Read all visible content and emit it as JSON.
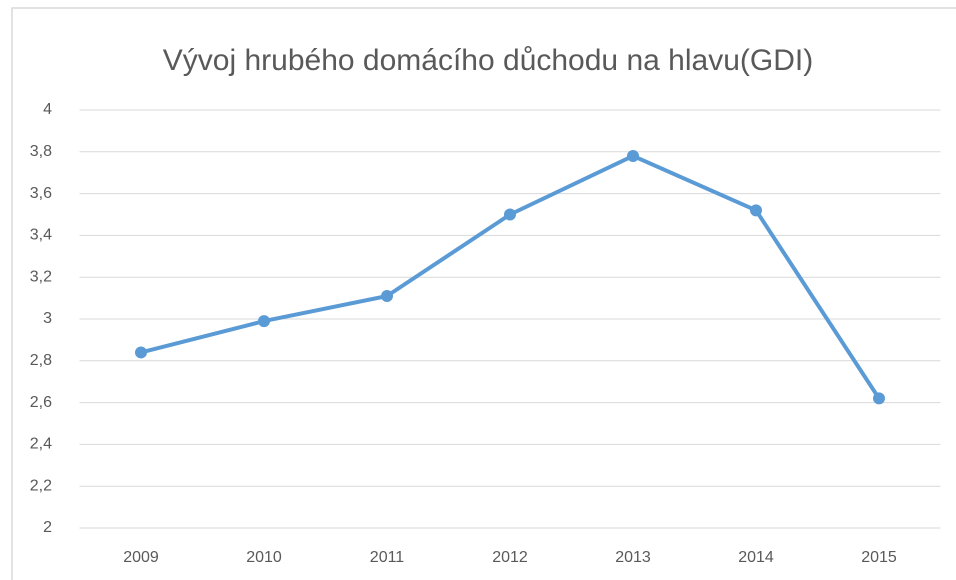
{
  "chart_data": {
    "type": "line",
    "title": "Vývoj hrubého domácího důchodu na hlavu(GDI)",
    "categories": [
      "2009",
      "2010",
      "2011",
      "2012",
      "2013",
      "2014",
      "2015"
    ],
    "series": [
      {
        "name": "GDI",
        "color": "#5b9bd5",
        "values": [
          2.84,
          2.99,
          3.11,
          3.5,
          3.78,
          3.52,
          2.62
        ]
      }
    ],
    "ylim": [
      2,
      4
    ],
    "yticks": [
      2,
      {
        "value": 2.2,
        "label": "2,2"
      },
      {
        "value": 2.4,
        "label": "2,4"
      },
      {
        "value": 2.6,
        "label": "2,6"
      },
      {
        "value": 2.8,
        "label": "2,8"
      },
      3,
      {
        "value": 3.2,
        "label": "3,2"
      },
      {
        "value": 3.4,
        "label": "3,4"
      },
      {
        "value": 3.6,
        "label": "3,6"
      },
      {
        "value": 3.8,
        "label": "3,8"
      },
      4
    ],
    "grid": true
  }
}
